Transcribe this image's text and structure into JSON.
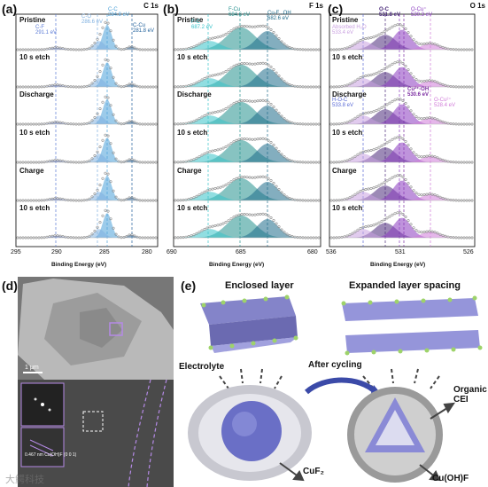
{
  "panel_a": {
    "letter": "(a)",
    "element": "C 1s",
    "rows": [
      "Pristine",
      "10 s etch",
      "Discharge",
      "10 s etch",
      "Charge",
      "10 s etch"
    ],
    "peaks": [
      {
        "name": "C-F",
        "energy": "291.1 eV",
        "color": "#5a7ad6"
      },
      {
        "name": "C-O",
        "energy": "286.6 eV",
        "color": "#7fb0e0"
      },
      {
        "name": "C-C",
        "energy": "284.8 eV",
        "color": "#4aa0d8"
      },
      {
        "name": "C-Cu",
        "energy": "281.8 eV",
        "color": "#1f5f9a"
      }
    ],
    "ticks": [
      "295",
      "290",
      "285",
      "280"
    ],
    "xlabel": "Binding Energy (eV)"
  },
  "panel_b": {
    "letter": "(b)",
    "element": "F 1s",
    "rows": [
      "Pristine",
      "10 s etch",
      "Discharge",
      "10 s etch",
      "Charge",
      "10 s etch"
    ],
    "peaks": [
      {
        "name": "F-C",
        "energy": "687.2 eV",
        "color": "#36c2c9"
      },
      {
        "name": "F-Cu",
        "energy": "684.6 eV",
        "color": "#24918e"
      },
      {
        "name": "Cu-F...OH",
        "energy": "682.6 eV",
        "color": "#1e6b8a"
      }
    ],
    "ticks": [
      "690",
      "685",
      "680"
    ],
    "xlabel": "Binding Energy (eV)"
  },
  "panel_c": {
    "letter": "(c)",
    "element": "O 1s",
    "rows": [
      "Pristine",
      "10 s etch",
      "Discharge",
      "10 s etch",
      "Charge",
      "10 s etch"
    ],
    "peaks": [
      {
        "name": "Absorbed H₂O",
        "energy": "533.4 eV",
        "color": "#c9a0e0"
      },
      {
        "name": "O-C",
        "energy": "531.8 eV",
        "color": "#4a2a7a"
      },
      {
        "name": "O-Cu⁺",
        "energy": "530.3 eV",
        "color": "#8a3bc0"
      },
      {
        "name": "H-O-C",
        "energy": "533.8 eV",
        "color": "#5a6ad6"
      },
      {
        "name": "Cu²⁺-OH",
        "energy": "530.6 eV",
        "color": "#7a2aa0"
      },
      {
        "name": "O-Cu²⁺",
        "energy": "528.4 eV",
        "color": "#d07ad8"
      }
    ],
    "ticks": [
      "536",
      "531",
      "526"
    ],
    "xlabel": "Binding Energy (eV)"
  },
  "panel_d": {
    "letter": "(d)",
    "scalebar": "1 μm",
    "fft_label": "0.467 nm\nCu(OH)F (0 0 1)"
  },
  "panel_e": {
    "letter": "(e)",
    "enclosed": "Enclosed layer",
    "expanded": "Expanded layer spacing",
    "electrolyte": "Electrolyte",
    "after": "After cycling",
    "organic": "Organic\nCEI",
    "cuf2": "CuF₂",
    "cuohf": "Cu(OH)F"
  },
  "watermark": "大鳄科技"
}
